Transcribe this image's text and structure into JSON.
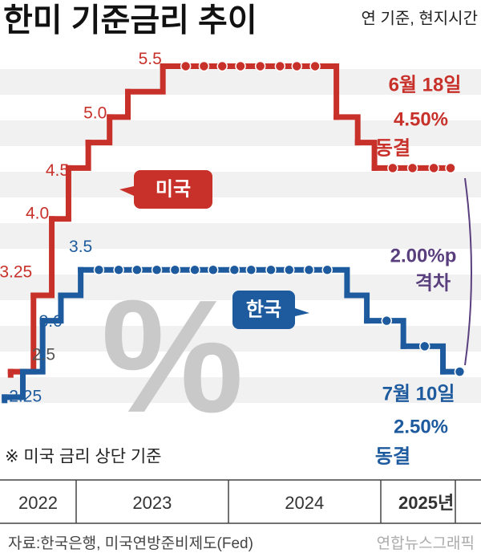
{
  "chart_data": {
    "type": "step",
    "title": "한미 기준금리 추이",
    "subtitle": "연 기준, 현지시간",
    "xlim": [
      2022.5,
      2025.66
    ],
    "ylim": [
      1.5,
      6.15
    ],
    "xticks": [
      {
        "value": 2022.75,
        "label": "2022"
      },
      {
        "value": 2023.5,
        "label": "2023"
      },
      {
        "value": 2024.5,
        "label": "2024"
      },
      {
        "value": 2025.3,
        "label": "2025년"
      }
    ],
    "series": [
      {
        "name": "미국",
        "color": "#c8312a",
        "x": [
          2022.57,
          2022.72,
          2022.84,
          2022.95,
          2023.08,
          2023.22,
          2023.34,
          2023.57,
          2023.72,
          2023.84,
          2023.96,
          2024.08,
          2024.21,
          2024.34,
          2024.45,
          2024.57,
          2024.71,
          2024.85,
          2024.96,
          2025.08,
          2025.21,
          2025.35,
          2025.46
        ],
        "values": [
          2.5,
          3.25,
          4,
          4.5,
          4.75,
          5,
          5.25,
          5.5,
          5.5,
          5.5,
          5.5,
          5.5,
          5.5,
          5.5,
          5.5,
          5.5,
          5,
          4.75,
          4.5,
          4.5,
          4.5,
          4.5,
          4.5
        ],
        "value_labels": [
          null,
          "3.25",
          "4.0",
          "4.5",
          null,
          "5.0",
          null,
          "5.5",
          null,
          null,
          null,
          null,
          null,
          null,
          null,
          null,
          null,
          null,
          null,
          null,
          null,
          null,
          null
        ]
      },
      {
        "name": "한국",
        "color": "#1d5a9e",
        "x": [
          2022.53,
          2022.65,
          2022.78,
          2022.9,
          2023.03,
          2023.15,
          2023.28,
          2023.4,
          2023.53,
          2023.65,
          2023.78,
          2023.9,
          2024.04,
          2024.15,
          2024.28,
          2024.4,
          2024.53,
          2024.65,
          2024.78,
          2024.91,
          2025.04,
          2025.15,
          2025.29,
          2025.41,
          2025.52
        ],
        "values": [
          2.25,
          2.5,
          3,
          3.25,
          3.5,
          3.5,
          3.5,
          3.5,
          3.5,
          3.5,
          3.5,
          3.5,
          3.5,
          3.5,
          3.5,
          3.5,
          3.5,
          3.5,
          3.25,
          3,
          3,
          2.75,
          2.75,
          2.5,
          2.5
        ],
        "value_labels": [
          "2.25",
          "2.5",
          "3.0",
          null,
          "3.5",
          null,
          null,
          null,
          null,
          null,
          null,
          null,
          null,
          null,
          null,
          null,
          null,
          null,
          null,
          null,
          null,
          null,
          null,
          null,
          null
        ]
      }
    ],
    "annotations": {
      "us_date": "6월 18일",
      "us_rate": "4.50%",
      "us_status": "동결",
      "kr_date": "7월 10일",
      "kr_rate": "2.50%",
      "kr_status": "동결",
      "gap": "2.00%p",
      "gap_label": "격차",
      "note": "※ 미국 금리 상단 기준",
      "watermark": "%"
    },
    "source": "자료:한국은행, 미국연방준비제도(Fed)",
    "credit": "연합뉴스그래픽"
  }
}
